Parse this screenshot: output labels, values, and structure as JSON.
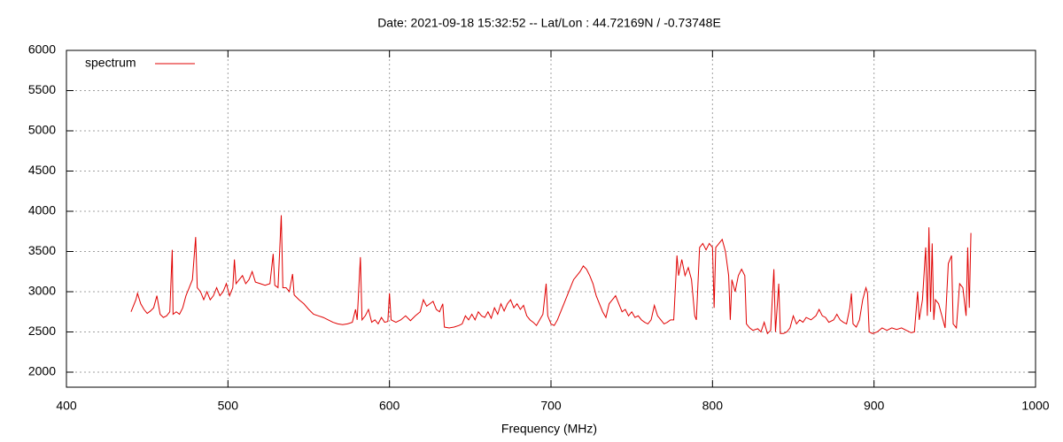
{
  "chart_data": {
    "type": "line",
    "title": "Date: 2021-09-18 15:32:52  --  Lat/Lon : 44.72169N / -0.73748E",
    "xlabel": "Frequency (MHz)",
    "x": [
      440,
      441,
      443,
      444,
      446,
      448,
      450,
      452,
      454,
      456,
      458,
      460,
      462,
      464,
      465.5,
      466,
      468,
      470,
      472,
      474,
      476,
      478,
      480,
      481,
      483,
      485,
      487,
      489,
      491,
      493,
      495,
      497,
      499,
      501,
      503,
      504,
      505,
      507,
      509,
      511,
      513,
      515,
      517,
      520,
      523,
      526,
      528,
      529,
      531,
      533,
      534,
      536,
      538,
      540,
      541,
      544,
      547,
      550,
      553,
      556,
      559,
      562,
      565,
      568,
      571,
      574,
      577,
      579,
      580,
      582,
      583,
      585,
      587,
      589,
      591,
      593,
      595,
      597,
      599,
      600,
      601,
      604,
      607,
      610,
      613,
      616,
      619,
      621,
      623,
      625,
      627,
      629,
      631,
      633,
      634,
      637,
      640,
      643,
      645,
      647,
      649,
      651,
      653,
      655,
      657,
      659,
      661,
      663,
      665,
      667,
      669,
      671,
      673,
      675,
      677,
      679,
      681,
      683,
      685,
      687,
      689,
      691,
      693,
      695,
      697,
      698,
      700,
      702,
      704,
      706,
      708,
      710,
      712,
      714,
      716,
      718,
      720,
      722,
      724,
      726,
      728,
      730,
      732,
      734,
      736,
      738,
      740,
      742,
      744,
      746,
      748,
      750,
      752,
      754,
      756,
      758,
      760,
      762,
      764,
      766,
      768,
      770,
      772,
      774,
      776,
      778,
      779,
      781,
      783,
      785,
      787,
      789,
      790,
      792,
      794,
      796,
      798,
      800,
      801,
      802,
      804,
      806,
      808,
      810,
      811,
      812,
      814,
      816,
      818,
      820,
      821,
      823,
      825,
      828,
      830,
      832,
      834,
      836,
      838,
      839,
      841,
      842,
      844,
      846,
      848,
      850,
      852,
      854,
      856,
      858,
      861,
      864,
      866,
      868,
      870,
      872,
      875,
      877,
      879,
      881,
      883,
      885,
      886,
      887,
      889,
      891,
      893,
      895,
      896,
      897,
      899,
      902,
      905,
      908,
      911,
      914,
      917,
      920,
      923,
      925,
      927,
      928,
      930,
      932,
      933,
      934,
      935,
      936,
      937,
      938,
      940,
      942,
      944,
      946,
      948,
      949,
      951,
      953,
      955,
      957,
      958,
      959,
      960
    ],
    "series": [
      {
        "name": "spectrum",
        "color": "#e00000",
        "values": [
          2750,
          2800,
          2900,
          2980,
          2850,
          2780,
          2730,
          2760,
          2800,
          2950,
          2720,
          2680,
          2700,
          2750,
          3520,
          2720,
          2750,
          2720,
          2800,
          2950,
          3050,
          3150,
          3680,
          3050,
          3000,
          2900,
          3000,
          2900,
          2950,
          3050,
          2950,
          3000,
          3100,
          2950,
          3050,
          3400,
          3100,
          3150,
          3200,
          3100,
          3150,
          3250,
          3120,
          3100,
          3080,
          3100,
          3470,
          3080,
          3050,
          3950,
          3050,
          3050,
          3000,
          3220,
          2960,
          2900,
          2850,
          2780,
          2720,
          2700,
          2680,
          2650,
          2620,
          2600,
          2590,
          2600,
          2620,
          2780,
          2650,
          3430,
          2650,
          2700,
          2780,
          2620,
          2650,
          2600,
          2680,
          2620,
          2630,
          2980,
          2650,
          2620,
          2650,
          2700,
          2640,
          2700,
          2750,
          2900,
          2820,
          2850,
          2880,
          2780,
          2750,
          2850,
          2560,
          2550,
          2560,
          2580,
          2600,
          2700,
          2650,
          2720,
          2650,
          2750,
          2700,
          2680,
          2750,
          2670,
          2800,
          2720,
          2850,
          2760,
          2850,
          2900,
          2800,
          2850,
          2780,
          2830,
          2700,
          2650,
          2620,
          2580,
          2650,
          2720,
          3100,
          2700,
          2600,
          2580,
          2650,
          2750,
          2850,
          2950,
          3050,
          3150,
          3200,
          3250,
          3320,
          3280,
          3200,
          3100,
          2950,
          2850,
          2750,
          2680,
          2850,
          2900,
          2950,
          2850,
          2750,
          2780,
          2700,
          2750,
          2680,
          2700,
          2650,
          2620,
          2600,
          2650,
          2830,
          2700,
          2650,
          2600,
          2620,
          2650,
          2650,
          3450,
          3200,
          3400,
          3200,
          3300,
          3150,
          2700,
          2650,
          3550,
          3600,
          3520,
          3600,
          3550,
          2800,
          3550,
          3600,
          3650,
          3500,
          3200,
          2650,
          3150,
          3000,
          3200,
          3280,
          3200,
          2600,
          2550,
          2520,
          2540,
          2500,
          2620,
          2480,
          2520,
          3280,
          2500,
          3100,
          2480,
          2480,
          2500,
          2550,
          2700,
          2600,
          2650,
          2620,
          2680,
          2650,
          2700,
          2780,
          2700,
          2680,
          2620,
          2650,
          2720,
          2650,
          2620,
          2600,
          2800,
          2980,
          2600,
          2560,
          2650,
          2900,
          3050,
          2980,
          2500,
          2480,
          2500,
          2550,
          2520,
          2550,
          2530,
          2550,
          2520,
          2490,
          2500,
          3000,
          2650,
          2900,
          3550,
          2700,
          3800,
          2750,
          3600,
          2650,
          2900,
          2850,
          2700,
          2550,
          3350,
          3450,
          2600,
          2550,
          3100,
          3050,
          2700,
          3550,
          2800,
          3730
        ]
      }
    ],
    "xlim": [
      400,
      1000
    ],
    "xticks": [
      400,
      500,
      600,
      700,
      800,
      900,
      1000
    ],
    "ylim": [
      1813,
      6000
    ],
    "yticks": [
      2000,
      2500,
      3000,
      3500,
      4000,
      4500,
      5000,
      5500,
      6000
    ],
    "grid": true,
    "legend": "top-left"
  }
}
